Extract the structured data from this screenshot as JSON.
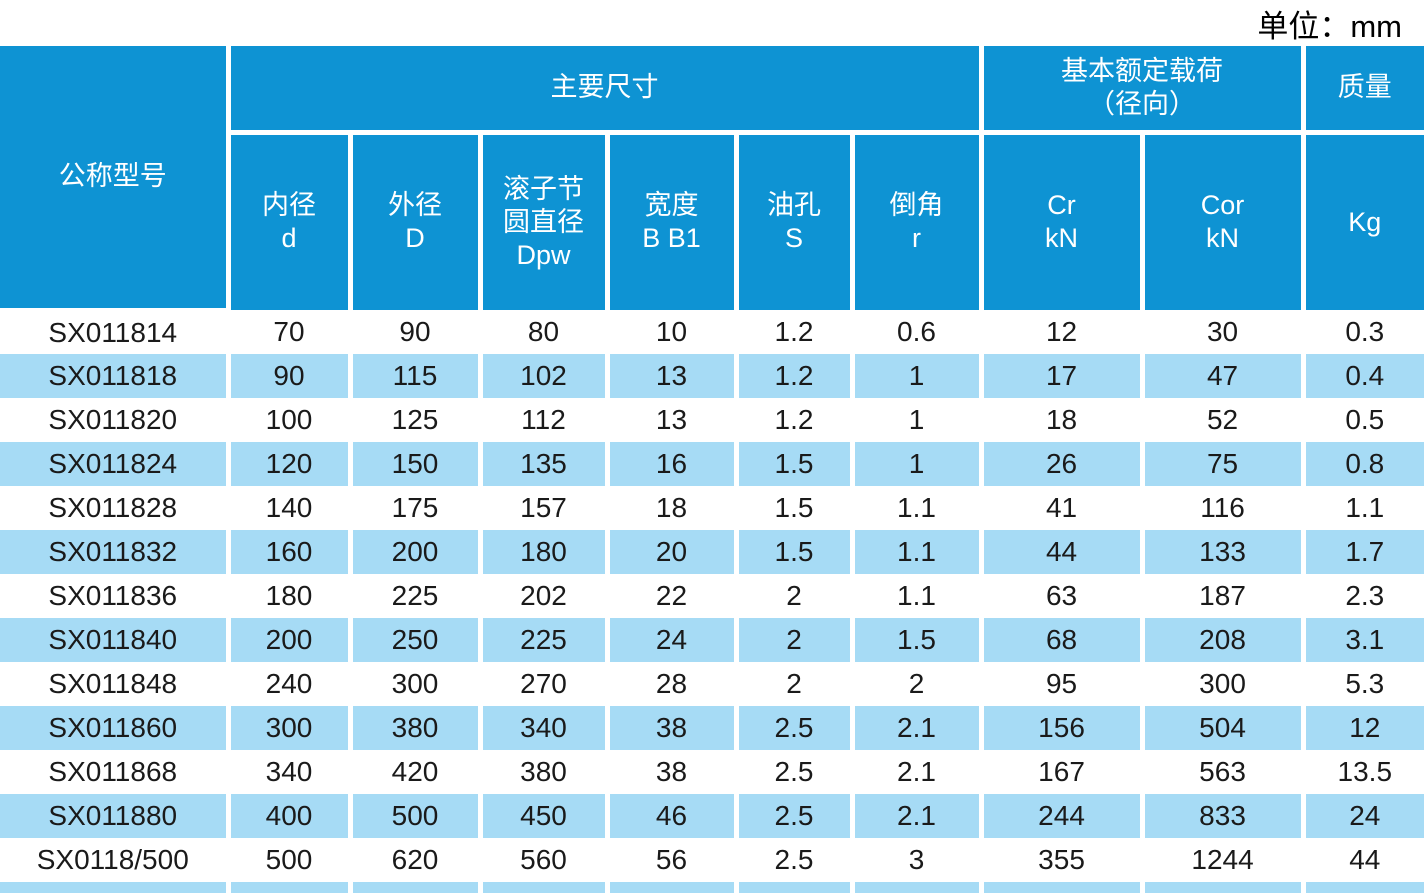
{
  "unit_label": "单位：mm",
  "colors": {
    "header_bg": "#0E93D3",
    "stripe_bg": "#A6DBF5",
    "header_text": "#FFFFFF",
    "body_text": "#1A1A1A"
  },
  "table": {
    "header": {
      "model": "公称型号",
      "main_dims": "主要尺寸",
      "load_l1": "基本额定载荷",
      "load_l2": "（径向）",
      "mass": "质量",
      "sub": [
        {
          "l1": "内径",
          "l2": "d"
        },
        {
          "l1": "外径",
          "l2": "D"
        },
        {
          "l1": "滚子节",
          "l2": "圆直径",
          "l3": "Dpw"
        },
        {
          "l1": "宽度",
          "l2": "B B1"
        },
        {
          "l1": "油孔",
          "l2": "S"
        },
        {
          "l1": "倒角",
          "l2": "r"
        },
        {
          "l1": "Cr",
          "l2": "kN"
        },
        {
          "l1": "Cor",
          "l2": "kN"
        },
        {
          "l1": "Kg"
        }
      ]
    },
    "rows": [
      [
        "SX011814",
        "70",
        "90",
        "80",
        "10",
        "1.2",
        "0.6",
        "12",
        "30",
        "0.3"
      ],
      [
        "SX011818",
        "90",
        "115",
        "102",
        "13",
        "1.2",
        "1",
        "17",
        "47",
        "0.4"
      ],
      [
        "SX011820",
        "100",
        "125",
        "112",
        "13",
        "1.2",
        "1",
        "18",
        "52",
        "0.5"
      ],
      [
        "SX011824",
        "120",
        "150",
        "135",
        "16",
        "1.5",
        "1",
        "26",
        "75",
        "0.8"
      ],
      [
        "SX011828",
        "140",
        "175",
        "157",
        "18",
        "1.5",
        "1.1",
        "41",
        "116",
        "1.1"
      ],
      [
        "SX011832",
        "160",
        "200",
        "180",
        "20",
        "1.5",
        "1.1",
        "44",
        "133",
        "1.7"
      ],
      [
        "SX011836",
        "180",
        "225",
        "202",
        "22",
        "2",
        "1.1",
        "63",
        "187",
        "2.3"
      ],
      [
        "SX011840",
        "200",
        "250",
        "225",
        "24",
        "2",
        "1.5",
        "68",
        "208",
        "3.1"
      ],
      [
        "SX011848",
        "240",
        "300",
        "270",
        "28",
        "2",
        "2",
        "95",
        "300",
        "5.3"
      ],
      [
        "SX011860",
        "300",
        "380",
        "340",
        "38",
        "2.5",
        "2.1",
        "156",
        "504",
        "12"
      ],
      [
        "SX011868",
        "340",
        "420",
        "380",
        "38",
        "2.5",
        "2.1",
        "167",
        "563",
        "13.5"
      ],
      [
        "SX011880",
        "400",
        "500",
        "450",
        "46",
        "2.5",
        "2.1",
        "244",
        "833",
        "24"
      ],
      [
        "SX0118/500",
        "500",
        "620",
        "560",
        "56",
        "2.5",
        "3",
        "355",
        "1244",
        "44"
      ]
    ]
  }
}
